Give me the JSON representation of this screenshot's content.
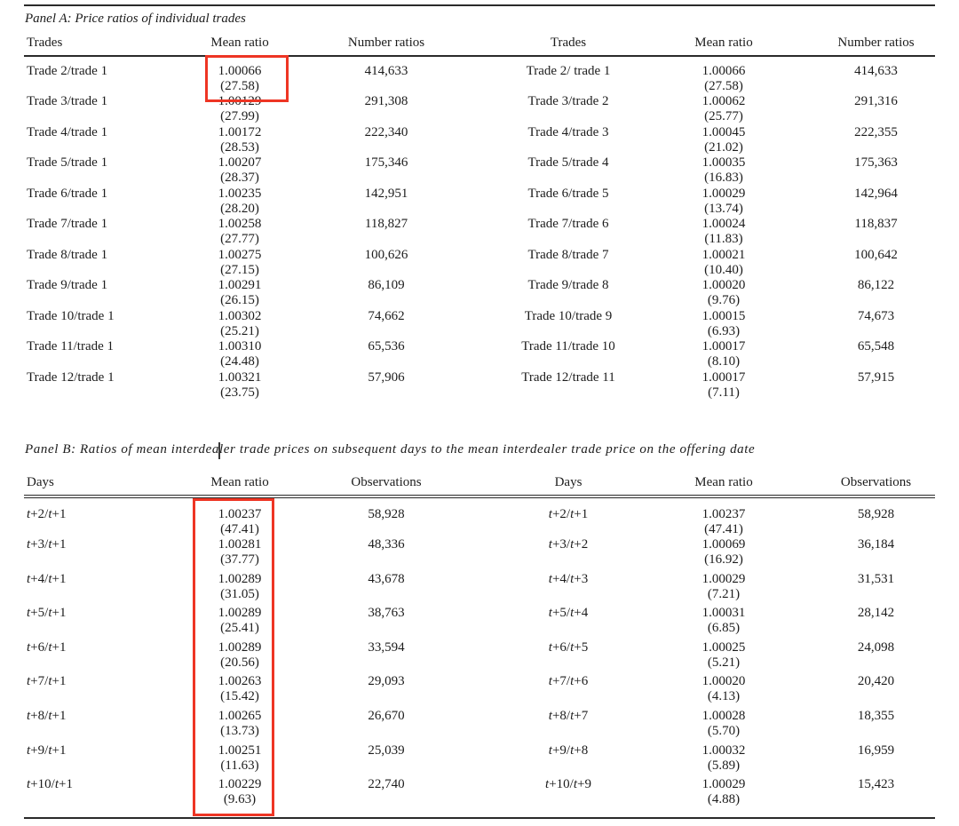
{
  "panelA": {
    "title": "Panel A: Price ratios of individual trades",
    "headers": [
      "Trades",
      "Mean ratio",
      "Number ratios",
      "Trades",
      "Mean ratio",
      "Number ratios"
    ],
    "rows": [
      {
        "left": {
          "label": "Trade 2/trade 1",
          "mean_ratio": "1.00066",
          "t_stat": "(27.58)",
          "count": "414,633"
        },
        "right": {
          "label": "Trade 2/ trade 1",
          "mean_ratio": "1.00066",
          "t_stat": "(27.58)",
          "count": "414,633"
        }
      },
      {
        "left": {
          "label": "Trade 3/trade 1",
          "mean_ratio": "1.00129",
          "t_stat": "(27.99)",
          "count": "291,308"
        },
        "right": {
          "label": "Trade 3/trade 2",
          "mean_ratio": "1.00062",
          "t_stat": "(25.77)",
          "count": "291,316"
        }
      },
      {
        "left": {
          "label": "Trade 4/trade 1",
          "mean_ratio": "1.00172",
          "t_stat": "(28.53)",
          "count": "222,340"
        },
        "right": {
          "label": "Trade 4/trade 3",
          "mean_ratio": "1.00045",
          "t_stat": "(21.02)",
          "count": "222,355"
        }
      },
      {
        "left": {
          "label": "Trade 5/trade 1",
          "mean_ratio": "1.00207",
          "t_stat": "(28.37)",
          "count": "175,346"
        },
        "right": {
          "label": "Trade 5/trade 4",
          "mean_ratio": "1.00035",
          "t_stat": "(16.83)",
          "count": "175,363"
        }
      },
      {
        "left": {
          "label": "Trade 6/trade 1",
          "mean_ratio": "1.00235",
          "t_stat": "(28.20)",
          "count": "142,951"
        },
        "right": {
          "label": "Trade 6/trade 5",
          "mean_ratio": "1.00029",
          "t_stat": "(13.74)",
          "count": "142,964"
        }
      },
      {
        "left": {
          "label": "Trade 7/trade 1",
          "mean_ratio": "1.00258",
          "t_stat": "(27.77)",
          "count": "118,827"
        },
        "right": {
          "label": "Trade 7/trade 6",
          "mean_ratio": "1.00024",
          "t_stat": "(11.83)",
          "count": "118,837"
        }
      },
      {
        "left": {
          "label": "Trade 8/trade 1",
          "mean_ratio": "1.00275",
          "t_stat": "(27.15)",
          "count": "100,626"
        },
        "right": {
          "label": "Trade 8/trade 7",
          "mean_ratio": "1.00021",
          "t_stat": "(10.40)",
          "count": "100,642"
        }
      },
      {
        "left": {
          "label": "Trade 9/trade 1",
          "mean_ratio": "1.00291",
          "t_stat": "(26.15)",
          "count": "86,109"
        },
        "right": {
          "label": "Trade 9/trade 8",
          "mean_ratio": "1.00020",
          "t_stat": "(9.76)",
          "count": "86,122"
        }
      },
      {
        "left": {
          "label": "Trade 10/trade 1",
          "mean_ratio": "1.00302",
          "t_stat": "(25.21)",
          "count": "74,662"
        },
        "right": {
          "label": "Trade 10/trade 9",
          "mean_ratio": "1.00015",
          "t_stat": "(6.93)",
          "count": "74,673"
        }
      },
      {
        "left": {
          "label": "Trade 11/trade 1",
          "mean_ratio": "1.00310",
          "t_stat": "(24.48)",
          "count": "65,536"
        },
        "right": {
          "label": "Trade 11/trade 10",
          "mean_ratio": "1.00017",
          "t_stat": "(8.10)",
          "count": "65,548"
        }
      },
      {
        "left": {
          "label": "Trade 12/trade 1",
          "mean_ratio": "1.00321",
          "t_stat": "(23.75)",
          "count": "57,906"
        },
        "right": {
          "label": "Trade 12/trade 11",
          "mean_ratio": "1.00017",
          "t_stat": "(7.11)",
          "count": "57,915"
        }
      }
    ]
  },
  "panelB": {
    "title": "Panel B: Ratios of mean interdealer trade prices on subsequent days to the mean interdealer trade price on the offering date",
    "headers": [
      "Days",
      "Mean ratio",
      "Observations",
      "Days",
      "Mean ratio",
      "Observations"
    ],
    "rows": [
      {
        "left": {
          "label": "t+2/t+1",
          "mean_ratio": "1.00237",
          "t_stat": "(47.41)",
          "count": "58,928"
        },
        "right": {
          "label": "t+2/t+1",
          "mean_ratio": "1.00237",
          "t_stat": "(47.41)",
          "count": "58,928"
        }
      },
      {
        "left": {
          "label": "t+3/t+1",
          "mean_ratio": "1.00281",
          "t_stat": "(37.77)",
          "count": "48,336"
        },
        "right": {
          "label": "t+3/t+2",
          "mean_ratio": "1.00069",
          "t_stat": "(16.92)",
          "count": "36,184"
        }
      },
      {
        "left": {
          "label": "t+4/t+1",
          "mean_ratio": "1.00289",
          "t_stat": "(31.05)",
          "count": "43,678"
        },
        "right": {
          "label": "t+4/t+3",
          "mean_ratio": "1.00029",
          "t_stat": "(7.21)",
          "count": "31,531"
        }
      },
      {
        "left": {
          "label": "t+5/t+1",
          "mean_ratio": "1.00289",
          "t_stat": "(25.41)",
          "count": "38,763"
        },
        "right": {
          "label": "t+5/t+4",
          "mean_ratio": "1.00031",
          "t_stat": "(6.85)",
          "count": "28,142"
        }
      },
      {
        "left": {
          "label": "t+6/t+1",
          "mean_ratio": "1.00289",
          "t_stat": "(20.56)",
          "count": "33,594"
        },
        "right": {
          "label": "t+6/t+5",
          "mean_ratio": "1.00025",
          "t_stat": "(5.21)",
          "count": "24,098"
        }
      },
      {
        "left": {
          "label": "t+7/t+1",
          "mean_ratio": "1.00263",
          "t_stat": "(15.42)",
          "count": "29,093"
        },
        "right": {
          "label": "t+7/t+6",
          "mean_ratio": "1.00020",
          "t_stat": "(4.13)",
          "count": "20,420"
        }
      },
      {
        "left": {
          "label": "t+8/t+1",
          "mean_ratio": "1.00265",
          "t_stat": "(13.73)",
          "count": "26,670"
        },
        "right": {
          "label": "t+8/t+7",
          "mean_ratio": "1.00028",
          "t_stat": "(5.70)",
          "count": "18,355"
        }
      },
      {
        "left": {
          "label": "t+9/t+1",
          "mean_ratio": "1.00251",
          "t_stat": "(11.63)",
          "count": "25,039"
        },
        "right": {
          "label": "t+9/t+8",
          "mean_ratio": "1.00032",
          "t_stat": "(5.89)",
          "count": "16,959"
        }
      },
      {
        "left": {
          "label": "t+10/t+1",
          "mean_ratio": "1.00229",
          "t_stat": "(9.63)",
          "count": "22,740"
        },
        "right": {
          "label": "t+10/t+9",
          "mean_ratio": "1.00029",
          "t_stat": "(4.88)",
          "count": "15,423"
        }
      }
    ]
  },
  "annotations": {
    "highlight_color": "#ee3524",
    "boxes": [
      {
        "label": "panel-a-row-1-left-mean-ratio"
      },
      {
        "label": "panel-b-left-mean-ratio-column"
      }
    ],
    "cursor_color": "#3a3a3a",
    "text_color": "#1c1c1c",
    "rule_color": "#2a2a2a"
  }
}
